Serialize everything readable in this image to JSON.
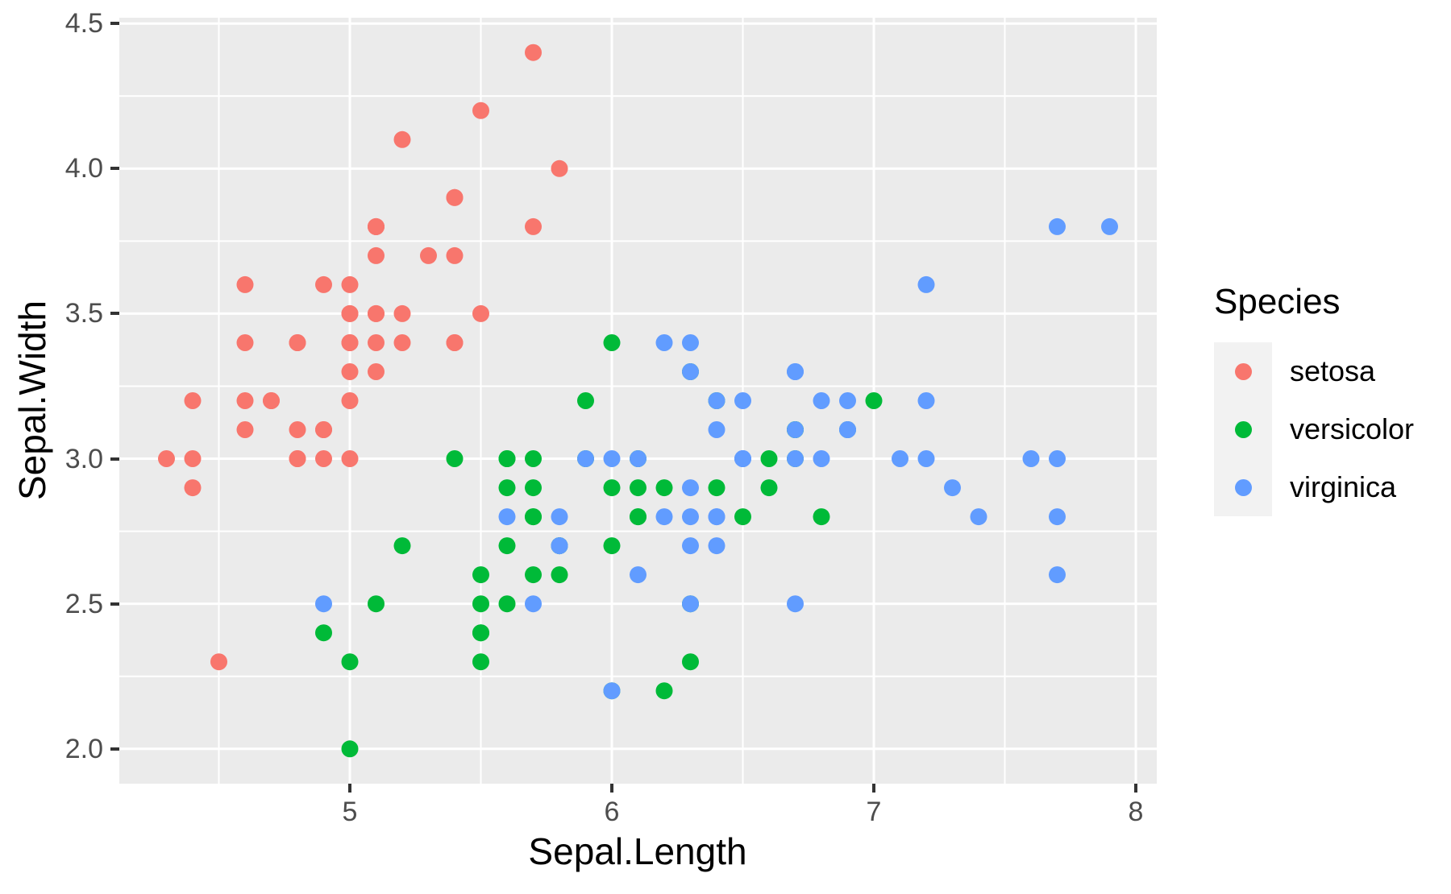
{
  "chart_data": {
    "type": "scatter",
    "title": "",
    "xlabel": "Sepal.Length",
    "ylabel": "Sepal.Width",
    "xlim": [
      4.12,
      8.08
    ],
    "ylim": [
      1.88,
      4.52
    ],
    "grid": true,
    "legend_position": "right",
    "point_radius": 10.5,
    "x_ticks": [
      {
        "value": 5,
        "label": "5"
      },
      {
        "value": 6,
        "label": "6"
      },
      {
        "value": 7,
        "label": "7"
      },
      {
        "value": 8,
        "label": "8"
      }
    ],
    "y_ticks": [
      {
        "value": 2.0,
        "label": "2.0"
      },
      {
        "value": 2.5,
        "label": "2.5"
      },
      {
        "value": 3.0,
        "label": "3.0"
      },
      {
        "value": 3.5,
        "label": "3.5"
      },
      {
        "value": 4.0,
        "label": "4.0"
      },
      {
        "value": 4.5,
        "label": "4.5"
      }
    ],
    "x_minor": [
      4.5,
      5.5,
      6.5,
      7.5
    ],
    "y_minor": [
      2.25,
      2.75,
      3.25,
      3.75,
      4.25
    ],
    "legend": {
      "title": "Species"
    },
    "series": [
      {
        "name": "setosa",
        "color": "#F8766D",
        "x": [
          5.1,
          4.9,
          4.7,
          4.6,
          5.0,
          5.4,
          4.6,
          5.0,
          4.4,
          4.9,
          5.4,
          4.8,
          4.8,
          4.3,
          5.8,
          5.7,
          5.4,
          5.1,
          5.7,
          5.1,
          5.4,
          5.1,
          4.6,
          5.1,
          4.8,
          5.0,
          5.0,
          5.2,
          5.2,
          4.7,
          4.8,
          5.4,
          5.2,
          5.5,
          4.9,
          5.0,
          5.5,
          4.9,
          4.4,
          5.1,
          5.0,
          4.5,
          4.4,
          5.0,
          5.1,
          4.8,
          5.1,
          4.6,
          5.3,
          5.0
        ],
        "y": [
          3.5,
          3.0,
          3.2,
          3.1,
          3.6,
          3.9,
          3.4,
          3.4,
          2.9,
          3.1,
          3.7,
          3.4,
          3.0,
          3.0,
          4.0,
          4.4,
          3.9,
          3.5,
          3.8,
          3.8,
          3.4,
          3.7,
          3.6,
          3.3,
          3.4,
          3.0,
          3.4,
          3.5,
          3.4,
          3.2,
          3.1,
          3.4,
          4.1,
          4.2,
          3.1,
          3.2,
          3.5,
          3.6,
          3.0,
          3.4,
          3.5,
          2.3,
          3.2,
          3.5,
          3.8,
          3.0,
          3.8,
          3.2,
          3.7,
          3.3
        ]
      },
      {
        "name": "versicolor",
        "color": "#00BA38",
        "x": [
          7.0,
          6.4,
          6.9,
          5.5,
          6.5,
          5.7,
          6.3,
          4.9,
          6.6,
          5.2,
          5.0,
          5.9,
          6.0,
          6.1,
          5.6,
          6.7,
          5.6,
          5.8,
          6.2,
          5.6,
          5.9,
          6.1,
          6.3,
          6.1,
          6.4,
          6.6,
          6.8,
          6.7,
          6.0,
          5.7,
          5.5,
          5.5,
          5.8,
          6.0,
          5.4,
          6.0,
          6.7,
          6.3,
          5.6,
          5.5,
          5.5,
          6.1,
          5.8,
          5.0,
          5.6,
          5.7,
          5.7,
          6.2,
          5.1,
          5.7
        ],
        "y": [
          3.2,
          3.2,
          3.1,
          2.3,
          2.8,
          2.8,
          3.3,
          2.4,
          2.9,
          2.7,
          2.0,
          3.0,
          2.2,
          2.9,
          2.9,
          3.1,
          3.0,
          2.7,
          2.2,
          2.5,
          3.2,
          2.8,
          2.5,
          2.8,
          2.9,
          3.0,
          2.8,
          3.0,
          2.9,
          2.6,
          2.4,
          2.4,
          2.7,
          2.7,
          3.0,
          3.4,
          3.1,
          2.3,
          3.0,
          2.5,
          2.6,
          3.0,
          2.6,
          2.3,
          2.7,
          3.0,
          2.9,
          2.9,
          2.5,
          2.8
        ]
      },
      {
        "name": "virginica",
        "color": "#619CFF",
        "x": [
          6.3,
          5.8,
          7.1,
          6.3,
          6.5,
          7.6,
          4.9,
          7.3,
          6.7,
          7.2,
          6.5,
          6.4,
          6.8,
          5.7,
          5.8,
          6.4,
          6.5,
          7.7,
          7.7,
          6.0,
          6.9,
          5.6,
          7.7,
          6.3,
          6.7,
          7.2,
          6.2,
          6.1,
          6.4,
          7.2,
          7.4,
          7.9,
          6.4,
          6.3,
          6.1,
          7.7,
          6.3,
          6.4,
          6.0,
          6.9,
          6.7,
          6.9,
          5.8,
          6.8,
          6.7,
          6.7,
          6.3,
          6.5,
          6.2,
          5.9
        ],
        "y": [
          3.3,
          2.7,
          3.0,
          2.9,
          3.0,
          3.0,
          2.5,
          2.9,
          2.5,
          3.6,
          3.2,
          2.7,
          3.0,
          2.5,
          2.8,
          3.2,
          3.0,
          3.8,
          2.6,
          2.2,
          3.2,
          2.8,
          2.8,
          2.7,
          3.3,
          3.2,
          2.8,
          3.0,
          2.8,
          3.0,
          2.8,
          3.8,
          2.8,
          2.8,
          2.6,
          3.0,
          3.4,
          3.1,
          3.0,
          3.1,
          3.1,
          3.1,
          2.7,
          3.2,
          3.3,
          3.0,
          2.5,
          3.0,
          3.4,
          3.0
        ]
      }
    ],
    "style": {
      "panel_bg": "#EBEBEB",
      "grid_color": "#FFFFFF",
      "grid_major_width": 3,
      "grid_minor_width": 2,
      "tick_color": "#333333",
      "tick_label_color": "#4D4D4D",
      "legend_key_bg": "#F2F2F2"
    }
  }
}
